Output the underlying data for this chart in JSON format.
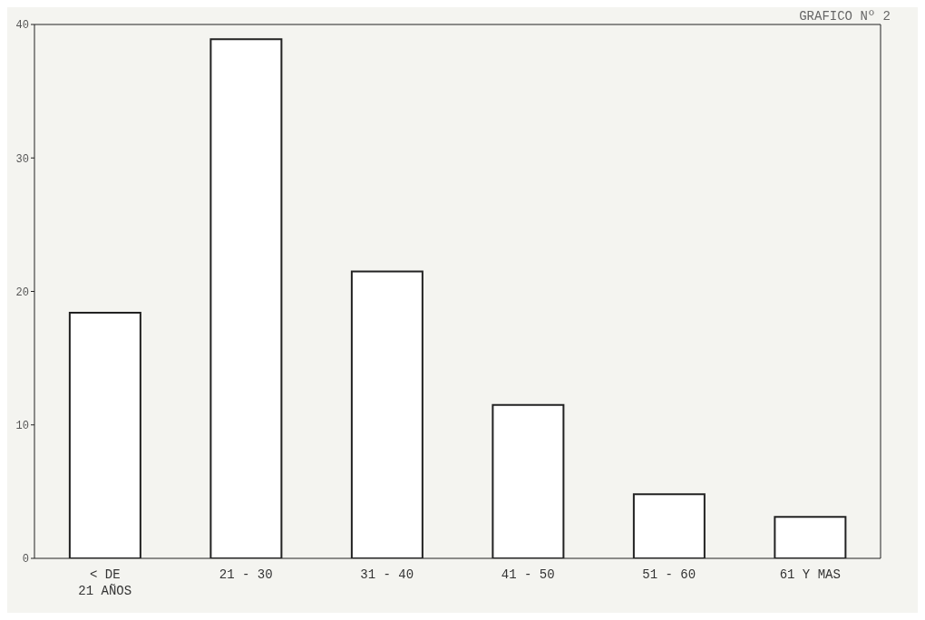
{
  "chart_data": {
    "type": "bar",
    "title": "GRAFICO Nº 2",
    "categories": [
      "< DE\n21 AÑOS",
      "21 - 30",
      "31 - 40",
      "41 - 50",
      "51 - 60",
      "61 Y MAS"
    ],
    "values": [
      18.4,
      38.9,
      21.5,
      11.5,
      4.8,
      3.1
    ],
    "color": "#ffffff",
    "ylim": [
      0,
      40
    ],
    "yticks": [
      0,
      10,
      20,
      30,
      40
    ],
    "grid": false
  }
}
